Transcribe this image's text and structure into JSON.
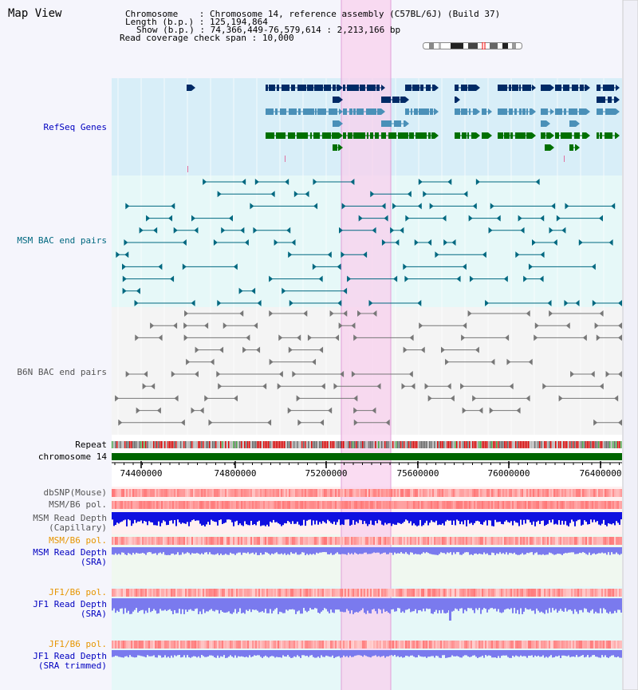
{
  "title": "Map View",
  "header": {
    "chromosome_label": "Chromosome",
    "chromosome_value": "Chromosome 14, reference assembly (C57BL/6J) (Build 37)",
    "length_label": "Length (b.p.)",
    "length_value": "125,194,864",
    "show_label": "Show (b.p.)",
    "show_value": "74,366,449-76,579,614 : 2,213,166 bp",
    "span_label": "Read coverage check span",
    "span_value": "10,000"
  },
  "tracks": {
    "refseq": "RefSeq Genes",
    "msm_bac": "MSM BAC end pairs",
    "b6n_bac": "B6N BAC end pairs",
    "repeat": "Repeat",
    "chromosome": "chromosome 14",
    "dbsnp": "dbSNP(Mouse)",
    "msm_pol": "MSM/B6 pol.",
    "msm_depth_cap_1": "MSM Read Depth",
    "msm_depth_cap_2": "(Capillary)",
    "msm_pol_2": "MSM/B6 pol.",
    "msm_depth_sra_1": "MSM Read Depth",
    "msm_depth_sra_2": "(SRA)",
    "jf1_pol": "JF1/B6 pol.",
    "jf1_depth_sra_1": "JF1 Read Depth",
    "jf1_depth_sra_2": "(SRA)",
    "jf1_pol_2": "JF1/B6 pol.",
    "jf1_depth_trim_1": "JF1 Read Depth",
    "jf1_depth_trim_2": "(SRA trimmed)"
  },
  "axis_ticks": [
    "74400000",
    "74800000",
    "75200000",
    "75600000",
    "76000000",
    "76400000"
  ],
  "colors": {
    "refseq_dark": "#002a66",
    "refseq_mid": "#4a90b8",
    "refseq_green": "#007000",
    "bac_teal": "#006880",
    "bac_grey": "#777777",
    "highlight": "#f8d0ee",
    "chrom_green": "#006600",
    "depth_blue": "#1010e0",
    "depth_light": "#7a7aee"
  }
}
